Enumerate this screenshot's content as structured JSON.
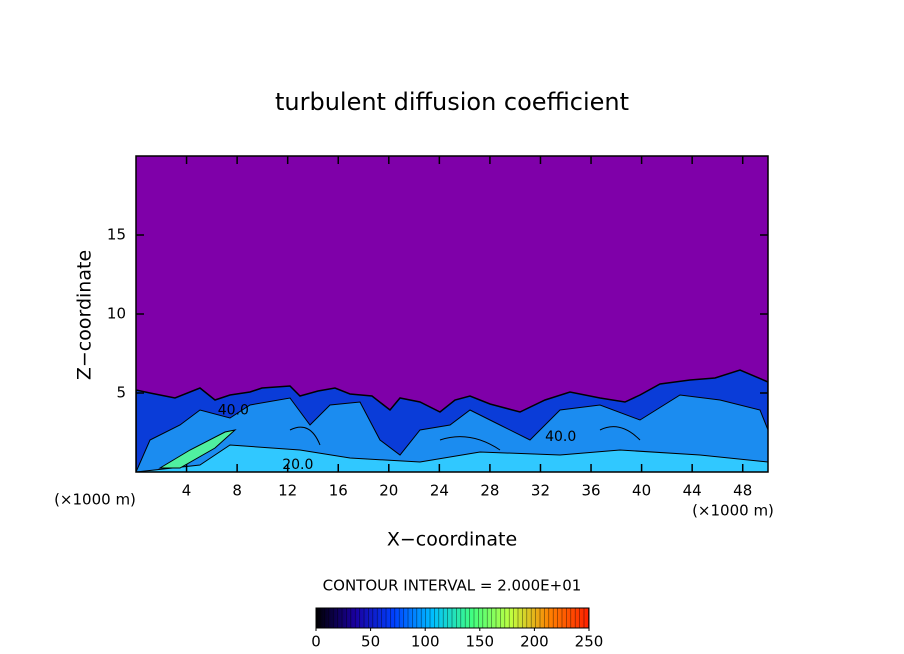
{
  "chart_data": {
    "type": "contour",
    "title": "turbulent diffusion coefficient",
    "x_label": "X−coordinate",
    "y_label": "Z−coordinate",
    "x_unit": "(×1000 m)",
    "x_unit_right": "(×1000 m)",
    "xlim": [
      0,
      50
    ],
    "ylim": [
      0,
      20
    ],
    "xticks": [
      4,
      8,
      12,
      16,
      20,
      24,
      28,
      32,
      36,
      40,
      44,
      48
    ],
    "yticks": [
      5,
      10,
      15
    ],
    "background_color": "#7f00a9",
    "contour_interval_text": "CONTOUR INTERVAL = 2.000E+01",
    "zlim": [
      0,
      250
    ],
    "zticks": [
      0,
      50,
      100,
      150,
      200,
      250
    ],
    "colorscale": [
      "#000000",
      "#1a00a0",
      "#0040ff",
      "#00c0ff",
      "#40ff80",
      "#c0ff40",
      "#ff8000",
      "#ff2000"
    ],
    "annotations": [
      {
        "text": "40.0",
        "x": 7.7,
        "y": 3.9
      },
      {
        "text": "40.0",
        "x": 33.6,
        "y": 2.2
      },
      {
        "text": "20.0",
        "x": 12.8,
        "y": 0.45
      }
    ]
  }
}
